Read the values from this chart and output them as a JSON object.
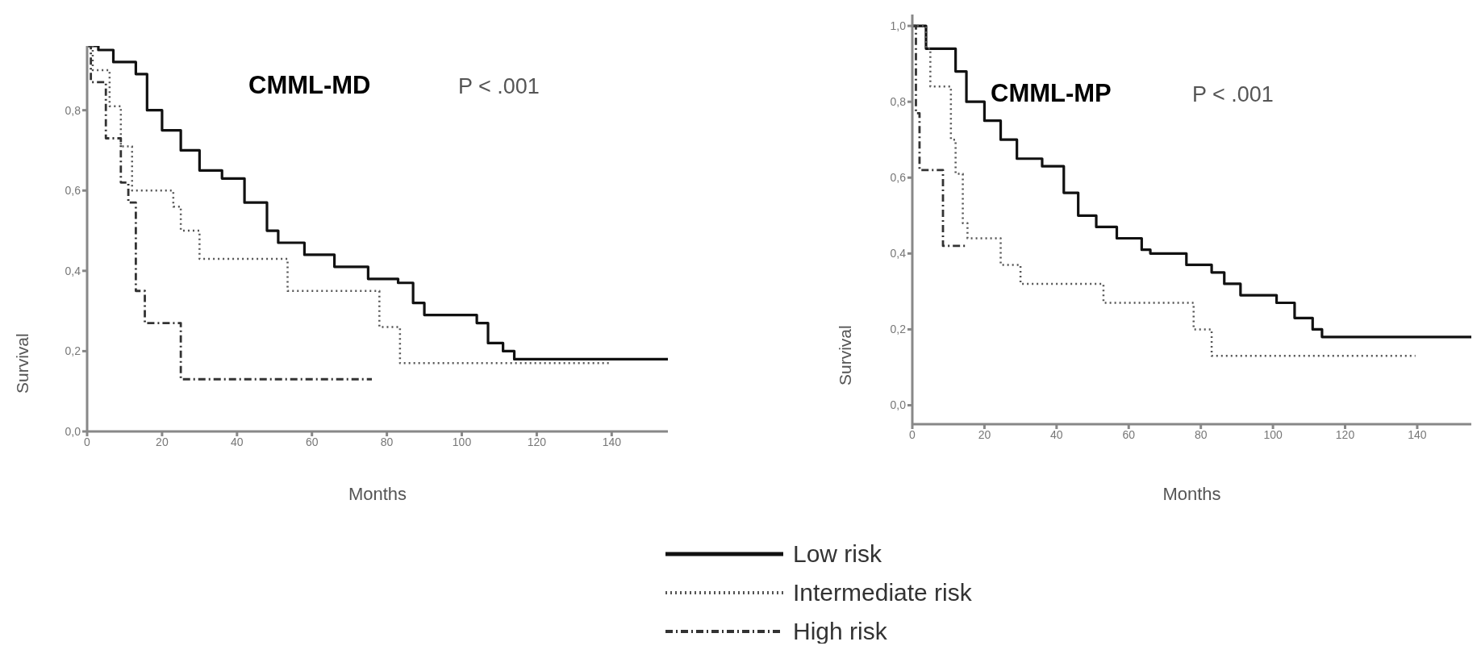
{
  "chart_data": [
    {
      "type": "step",
      "title": "CMML-MD",
      "xlabel": "Months",
      "ylabel": "Survival",
      "annotations": [
        "P < .001"
      ],
      "xlim": [
        0,
        155
      ],
      "xticks": [
        0,
        20,
        40,
        60,
        80,
        100,
        120,
        140
      ],
      "ylim": [
        0,
        0.96
      ],
      "yticks": [
        {
          "value": 0,
          "label": "0,0"
        },
        {
          "value": 0.2,
          "label": "0,2"
        },
        {
          "value": 0.4,
          "label": "0,4"
        },
        {
          "value": 0.6,
          "label": "0,6"
        },
        {
          "value": 0.8,
          "label": "0,8"
        }
      ],
      "legend": "bottom right",
      "marker": "none",
      "series": [
        {
          "name": "Low risk",
          "color": "#111111",
          "line_style": "solid",
          "x": [
            0,
            3,
            7,
            13,
            16,
            20,
            25,
            30,
            36,
            42,
            48,
            51,
            58,
            66,
            75,
            83,
            87,
            90,
            100,
            104,
            107,
            111,
            114,
            155
          ],
          "values": [
            0.96,
            0.95,
            0.92,
            0.89,
            0.8,
            0.75,
            0.7,
            0.65,
            0.63,
            0.57,
            0.5,
            0.47,
            0.44,
            0.41,
            0.38,
            0.37,
            0.32,
            0.29,
            0.29,
            0.27,
            0.22,
            0.2,
            0.18,
            0.18
          ]
        },
        {
          "name": "Intermediate risk",
          "color": "#555555",
          "line_style": "dotted",
          "x": [
            0,
            1.5,
            6,
            9,
            12,
            23,
            25,
            30,
            53.5,
            78,
            83.5,
            140
          ],
          "values": [
            0.96,
            0.9,
            0.81,
            0.71,
            0.6,
            0.56,
            0.5,
            0.43,
            0.35,
            0.26,
            0.17,
            0.17
          ]
        },
        {
          "name": "High risk",
          "color": "#333333",
          "line_style": "dashed",
          "x": [
            0,
            1,
            5,
            9,
            11,
            13,
            15.4,
            25,
            76
          ],
          "values": [
            0.96,
            0.87,
            0.73,
            0.62,
            0.57,
            0.35,
            0.27,
            0.13,
            0.13
          ]
        }
      ]
    },
    {
      "type": "step",
      "title": "CMML-MP",
      "xlabel": "Months",
      "ylabel": "Survival",
      "annotations": [
        "P < .001"
      ],
      "xlim": [
        0,
        155
      ],
      "xticks": [
        0,
        20,
        40,
        60,
        80,
        100,
        120,
        140
      ],
      "ylim": [
        -0.05,
        1.03
      ],
      "yticks": [
        {
          "value": 0,
          "label": "0,0"
        },
        {
          "value": 0.2,
          "label": "0,2"
        },
        {
          "value": 0.4,
          "label": "0,4"
        },
        {
          "value": 0.6,
          "label": "0,6"
        },
        {
          "value": 0.8,
          "label": "0,8"
        },
        {
          "value": 1,
          "label": "1,0"
        }
      ],
      "marker": "none",
      "series": [
        {
          "color": "#111111",
          "line_style": "solid",
          "x": [
            0,
            3.8,
            12,
            15,
            20,
            24.5,
            29,
            36,
            42,
            46,
            51,
            56.7,
            63.6,
            66,
            76,
            83,
            86.5,
            91,
            101,
            106,
            111,
            113.6,
            155
          ],
          "values": [
            1,
            0.94,
            0.88,
            0.8,
            0.75,
            0.7,
            0.65,
            0.63,
            0.56,
            0.5,
            0.47,
            0.44,
            0.41,
            0.4,
            0.37,
            0.35,
            0.32,
            0.29,
            0.27,
            0.23,
            0.2,
            0.18,
            0.18
          ]
        },
        {
          "color": "#555555",
          "line_style": "dotted",
          "x": [
            0,
            3.8,
            5,
            10.7,
            12,
            14,
            15.3,
            24.5,
            30,
            53,
            78,
            83,
            139.5
          ],
          "values": [
            1,
            0.94,
            0.84,
            0.7,
            0.61,
            0.48,
            0.44,
            0.37,
            0.32,
            0.27,
            0.2,
            0.13,
            0.13
          ]
        },
        {
          "color": "#333333",
          "line_style": "dashed",
          "x": [
            0,
            1,
            2,
            8.5,
            14.7
          ],
          "values": [
            1,
            0.77,
            0.62,
            0.42,
            0.42
          ]
        }
      ]
    }
  ]
}
